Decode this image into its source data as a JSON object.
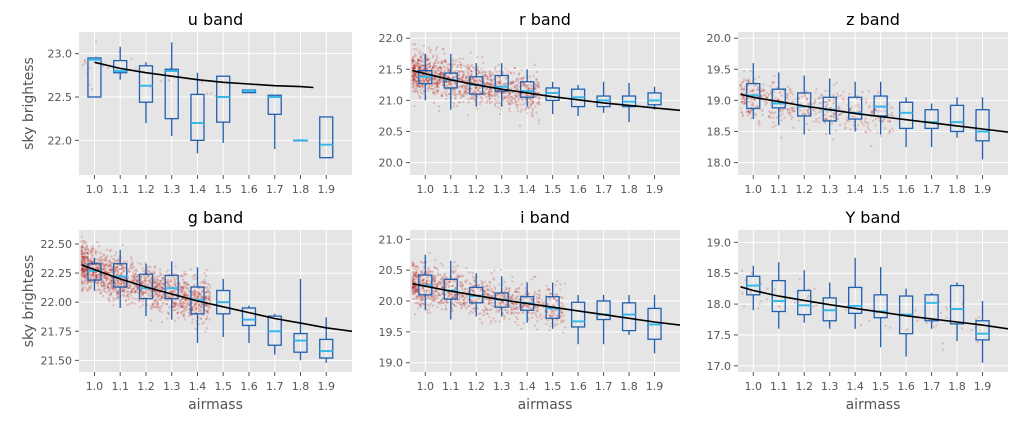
{
  "chart_data": [
    {
      "type": "box",
      "title": "u band",
      "xlabel": "",
      "ylabel": "sky brightess",
      "categories": [
        "1.0",
        "1.1",
        "1.2",
        "1.3",
        "1.4",
        "1.5",
        "1.6",
        "1.7",
        "1.8",
        "1.9"
      ],
      "ylim": [
        21.6,
        23.25
      ],
      "yticks": [
        "22.0",
        "22.5",
        "23.0"
      ],
      "boxes": [
        {
          "x": 1.0,
          "whislo": 22.5,
          "q1": 22.5,
          "med": 22.93,
          "q3": 22.95,
          "whishi": 22.95
        },
        {
          "x": 1.1,
          "whislo": 22.7,
          "q1": 22.78,
          "med": 22.8,
          "q3": 22.92,
          "whishi": 23.08
        },
        {
          "x": 1.2,
          "whislo": 22.2,
          "q1": 22.44,
          "med": 22.63,
          "q3": 22.86,
          "whishi": 22.9
        },
        {
          "x": 1.3,
          "whislo": 22.05,
          "q1": 22.25,
          "med": 22.8,
          "q3": 22.82,
          "whishi": 23.13
        },
        {
          "x": 1.4,
          "whislo": 21.85,
          "q1": 22.0,
          "med": 22.2,
          "q3": 22.53,
          "whishi": 22.78
        },
        {
          "x": 1.5,
          "whislo": 21.97,
          "q1": 22.21,
          "med": 22.5,
          "q3": 22.74,
          "whishi": 22.74
        },
        {
          "x": 1.6,
          "whislo": 22.55,
          "q1": 22.55,
          "med": 22.57,
          "q3": 22.58,
          "whishi": 22.58
        },
        {
          "x": 1.7,
          "whislo": 21.9,
          "q1": 22.3,
          "med": 22.5,
          "q3": 22.52,
          "whishi": 22.52
        },
        {
          "x": 1.8,
          "whislo": 22.0,
          "q1": 22.0,
          "med": 22.0,
          "q3": 22.0,
          "whishi": 22.0
        },
        {
          "x": 1.9,
          "whislo": 21.8,
          "q1": 21.8,
          "med": 21.95,
          "q3": 22.27,
          "whishi": 22.27
        }
      ],
      "fit": [
        [
          1.0,
          22.9
        ],
        [
          1.1,
          22.83
        ],
        [
          1.2,
          22.78
        ],
        [
          1.3,
          22.74
        ],
        [
          1.4,
          22.7
        ],
        [
          1.5,
          22.67
        ],
        [
          1.6,
          22.65
        ],
        [
          1.7,
          22.63
        ],
        [
          1.8,
          22.62
        ],
        [
          1.85,
          22.61
        ]
      ],
      "scatter": {
        "density": 25,
        "x_max": 1.55
      }
    },
    {
      "type": "box",
      "title": "r band",
      "xlabel": "",
      "ylabel": "",
      "categories": [
        "1.0",
        "1.1",
        "1.2",
        "1.3",
        "1.4",
        "1.5",
        "1.6",
        "1.7",
        "1.8",
        "1.9"
      ],
      "ylim": [
        19.8,
        22.1
      ],
      "yticks": [
        "20.0",
        "20.5",
        "21.0",
        "21.5",
        "22.0"
      ],
      "boxes": [
        {
          "x": 1.0,
          "whislo": 21.0,
          "q1": 21.27,
          "med": 21.38,
          "q3": 21.48,
          "whishi": 21.75
        },
        {
          "x": 1.1,
          "whislo": 20.85,
          "q1": 21.2,
          "med": 21.33,
          "q3": 21.44,
          "whishi": 21.75
        },
        {
          "x": 1.2,
          "whislo": 20.9,
          "q1": 21.1,
          "med": 21.25,
          "q3": 21.38,
          "whishi": 21.6
        },
        {
          "x": 1.3,
          "whislo": 20.9,
          "q1": 21.15,
          "med": 21.22,
          "q3": 21.4,
          "whishi": 21.6
        },
        {
          "x": 1.4,
          "whislo": 20.9,
          "q1": 21.05,
          "med": 21.15,
          "q3": 21.3,
          "whishi": 21.5
        },
        {
          "x": 1.5,
          "whislo": 20.78,
          "q1": 21.0,
          "med": 21.12,
          "q3": 21.2,
          "whishi": 21.3
        },
        {
          "x": 1.6,
          "whislo": 20.75,
          "q1": 20.9,
          "med": 21.05,
          "q3": 21.18,
          "whishi": 21.25
        },
        {
          "x": 1.7,
          "whislo": 20.8,
          "q1": 20.9,
          "med": 21.0,
          "q3": 21.07,
          "whishi": 21.3
        },
        {
          "x": 1.8,
          "whislo": 20.65,
          "q1": 20.9,
          "med": 20.98,
          "q3": 21.07,
          "whishi": 21.28
        },
        {
          "x": 1.9,
          "whislo": 20.85,
          "q1": 20.93,
          "med": 21.0,
          "q3": 21.12,
          "whishi": 21.22
        }
      ],
      "fit": [
        [
          0.95,
          21.48
        ],
        [
          1.0,
          21.43
        ],
        [
          1.1,
          21.33
        ],
        [
          1.2,
          21.25
        ],
        [
          1.3,
          21.18
        ],
        [
          1.4,
          21.12
        ],
        [
          1.5,
          21.06
        ],
        [
          1.6,
          21.01
        ],
        [
          1.7,
          20.96
        ],
        [
          1.8,
          20.92
        ],
        [
          1.9,
          20.88
        ],
        [
          2.0,
          20.84
        ]
      ],
      "scatter": {
        "density": 1300,
        "x_max": 1.45
      }
    },
    {
      "type": "box",
      "title": "z band",
      "xlabel": "",
      "ylabel": "",
      "categories": [
        "1.0",
        "1.1",
        "1.2",
        "1.3",
        "1.4",
        "1.5",
        "1.6",
        "1.7",
        "1.8",
        "1.9"
      ],
      "ylim": [
        17.8,
        20.1
      ],
      "yticks": [
        "18.0",
        "18.5",
        "19.0",
        "19.5",
        "20.0"
      ],
      "boxes": [
        {
          "x": 1.0,
          "whislo": 18.7,
          "q1": 18.87,
          "med": 19.08,
          "q3": 19.27,
          "whishi": 19.6
        },
        {
          "x": 1.1,
          "whislo": 18.6,
          "q1": 18.88,
          "med": 18.95,
          "q3": 19.18,
          "whishi": 19.45
        },
        {
          "x": 1.2,
          "whislo": 18.45,
          "q1": 18.75,
          "med": 18.9,
          "q3": 19.12,
          "whishi": 19.4
        },
        {
          "x": 1.3,
          "whislo": 18.45,
          "q1": 18.67,
          "med": 18.85,
          "q3": 19.05,
          "whishi": 19.35
        },
        {
          "x": 1.4,
          "whislo": 18.5,
          "q1": 18.7,
          "med": 18.8,
          "q3": 19.05,
          "whishi": 19.3
        },
        {
          "x": 1.5,
          "whislo": 18.45,
          "q1": 18.75,
          "med": 18.9,
          "q3": 19.07,
          "whishi": 19.3
        },
        {
          "x": 1.6,
          "whislo": 18.25,
          "q1": 18.55,
          "med": 18.8,
          "q3": 18.97,
          "whishi": 19.05
        },
        {
          "x": 1.7,
          "whislo": 18.25,
          "q1": 18.55,
          "med": 18.65,
          "q3": 18.85,
          "whishi": 18.95
        },
        {
          "x": 1.8,
          "whislo": 18.4,
          "q1": 18.5,
          "med": 18.65,
          "q3": 18.92,
          "whishi": 19.05
        },
        {
          "x": 1.9,
          "whislo": 18.05,
          "q1": 18.35,
          "med": 18.5,
          "q3": 18.85,
          "whishi": 19.05
        }
      ],
      "fit": [
        [
          0.95,
          19.1
        ],
        [
          1.0,
          19.05
        ],
        [
          1.1,
          18.98
        ],
        [
          1.2,
          18.91
        ],
        [
          1.3,
          18.85
        ],
        [
          1.4,
          18.79
        ],
        [
          1.5,
          18.74
        ],
        [
          1.6,
          18.69
        ],
        [
          1.7,
          18.64
        ],
        [
          1.8,
          18.59
        ],
        [
          1.9,
          18.54
        ],
        [
          2.0,
          18.49
        ]
      ],
      "scatter": {
        "density": 500,
        "x_max": 1.55
      }
    },
    {
      "type": "box",
      "title": "g band",
      "xlabel": "airmass",
      "ylabel": "sky brightess",
      "categories": [
        "1.0",
        "1.1",
        "1.2",
        "1.3",
        "1.4",
        "1.5",
        "1.6",
        "1.7",
        "1.8",
        "1.9"
      ],
      "ylim": [
        21.4,
        22.62
      ],
      "yticks": [
        "21.50",
        "21.75",
        "22.00",
        "22.25",
        "22.50"
      ],
      "boxes": [
        {
          "x": 1.0,
          "whislo": 22.1,
          "q1": 22.19,
          "med": 22.27,
          "q3": 22.33,
          "whishi": 22.38
        },
        {
          "x": 1.1,
          "whislo": 21.95,
          "q1": 22.13,
          "med": 22.22,
          "q3": 22.33,
          "whishi": 22.45
        },
        {
          "x": 1.2,
          "whislo": 21.88,
          "q1": 22.03,
          "med": 22.12,
          "q3": 22.24,
          "whishi": 22.33
        },
        {
          "x": 1.3,
          "whislo": 21.85,
          "q1": 22.03,
          "med": 22.12,
          "q3": 22.23,
          "whishi": 22.35
        },
        {
          "x": 1.4,
          "whislo": 21.65,
          "q1": 21.9,
          "med": 22.02,
          "q3": 22.13,
          "whishi": 22.3
        },
        {
          "x": 1.5,
          "whislo": 21.7,
          "q1": 21.9,
          "med": 22.0,
          "q3": 22.1,
          "whishi": 22.2
        },
        {
          "x": 1.6,
          "whislo": 21.65,
          "q1": 21.8,
          "med": 21.85,
          "q3": 21.95,
          "whishi": 21.97
        },
        {
          "x": 1.7,
          "whislo": 21.55,
          "q1": 21.63,
          "med": 21.75,
          "q3": 21.88,
          "whishi": 21.9
        },
        {
          "x": 1.8,
          "whislo": 21.5,
          "q1": 21.57,
          "med": 21.67,
          "q3": 21.73,
          "whishi": 22.2
        },
        {
          "x": 1.9,
          "whislo": 21.48,
          "q1": 21.52,
          "med": 21.58,
          "q3": 21.68,
          "whishi": 21.87
        }
      ],
      "fit": [
        [
          0.95,
          22.32
        ],
        [
          1.0,
          22.28
        ],
        [
          1.1,
          22.2
        ],
        [
          1.2,
          22.13
        ],
        [
          1.3,
          22.07
        ],
        [
          1.4,
          22.01
        ],
        [
          1.5,
          21.96
        ],
        [
          1.6,
          21.91
        ],
        [
          1.7,
          21.86
        ],
        [
          1.8,
          21.82
        ],
        [
          1.9,
          21.78
        ],
        [
          2.0,
          21.75
        ]
      ],
      "scatter": {
        "density": 1600,
        "x_max": 1.45
      }
    },
    {
      "type": "box",
      "title": "i band",
      "xlabel": "airmass",
      "ylabel": "",
      "categories": [
        "1.0",
        "1.1",
        "1.2",
        "1.3",
        "1.4",
        "1.5",
        "1.6",
        "1.7",
        "1.8",
        "1.9"
      ],
      "ylim": [
        18.85,
        21.15
      ],
      "yticks": [
        "19.0",
        "19.5",
        "20.0",
        "20.5",
        "21.0"
      ],
      "boxes": [
        {
          "x": 1.0,
          "whislo": 19.85,
          "q1": 20.1,
          "med": 20.25,
          "q3": 20.42,
          "whishi": 20.75
        },
        {
          "x": 1.1,
          "whislo": 19.7,
          "q1": 20.03,
          "med": 20.17,
          "q3": 20.35,
          "whishi": 20.65
        },
        {
          "x": 1.2,
          "whislo": 19.75,
          "q1": 19.97,
          "med": 20.08,
          "q3": 20.22,
          "whishi": 20.45
        },
        {
          "x": 1.3,
          "whislo": 19.75,
          "q1": 19.9,
          "med": 20.02,
          "q3": 20.13,
          "whishi": 20.4
        },
        {
          "x": 1.4,
          "whislo": 19.65,
          "q1": 19.85,
          "med": 19.97,
          "q3": 20.07,
          "whishi": 20.3
        },
        {
          "x": 1.5,
          "whislo": 19.55,
          "q1": 19.72,
          "med": 19.88,
          "q3": 20.07,
          "whishi": 20.3
        },
        {
          "x": 1.6,
          "whislo": 19.3,
          "q1": 19.58,
          "med": 19.67,
          "q3": 19.98,
          "whishi": 20.1
        },
        {
          "x": 1.7,
          "whislo": 19.3,
          "q1": 19.7,
          "med": 19.78,
          "q3": 20.0,
          "whishi": 20.1
        },
        {
          "x": 1.8,
          "whislo": 19.45,
          "q1": 19.52,
          "med": 19.78,
          "q3": 19.97,
          "whishi": 20.1
        },
        {
          "x": 1.9,
          "whislo": 19.15,
          "q1": 19.38,
          "med": 19.62,
          "q3": 19.88,
          "whishi": 20.1
        }
      ],
      "fit": [
        [
          0.95,
          20.28
        ],
        [
          1.0,
          20.24
        ],
        [
          1.1,
          20.16
        ],
        [
          1.2,
          20.09
        ],
        [
          1.3,
          20.02
        ],
        [
          1.4,
          19.96
        ],
        [
          1.5,
          19.9
        ],
        [
          1.6,
          19.84
        ],
        [
          1.7,
          19.78
        ],
        [
          1.8,
          19.72
        ],
        [
          1.9,
          19.66
        ],
        [
          2.0,
          19.61
        ]
      ],
      "scatter": {
        "density": 1100,
        "x_max": 1.55
      }
    },
    {
      "type": "box",
      "title": "Y band",
      "xlabel": "airmass",
      "ylabel": "",
      "categories": [
        "1.0",
        "1.1",
        "1.2",
        "1.3",
        "1.4",
        "1.5",
        "1.6",
        "1.7",
        "1.8",
        "1.9"
      ],
      "ylim": [
        16.9,
        19.2
      ],
      "yticks": [
        "17.0",
        "17.5",
        "18.0",
        "18.5",
        "19.0"
      ],
      "boxes": [
        {
          "x": 1.0,
          "whislo": 17.9,
          "q1": 18.15,
          "med": 18.3,
          "q3": 18.45,
          "whishi": 18.62
        },
        {
          "x": 1.1,
          "whislo": 17.6,
          "q1": 17.88,
          "med": 18.05,
          "q3": 18.38,
          "whishi": 18.68
        },
        {
          "x": 1.2,
          "whislo": 17.7,
          "q1": 17.83,
          "med": 17.98,
          "q3": 18.22,
          "whishi": 18.55
        },
        {
          "x": 1.3,
          "whislo": 17.6,
          "q1": 17.73,
          "med": 17.9,
          "q3": 18.1,
          "whishi": 18.35
        },
        {
          "x": 1.4,
          "whislo": 17.6,
          "q1": 17.85,
          "med": 17.97,
          "q3": 18.27,
          "whishi": 18.75
        },
        {
          "x": 1.5,
          "whislo": 17.3,
          "q1": 17.78,
          "med": 17.88,
          "q3": 18.15,
          "whishi": 18.6
        },
        {
          "x": 1.6,
          "whislo": 17.15,
          "q1": 17.52,
          "med": 17.83,
          "q3": 18.13,
          "whishi": 18.25
        },
        {
          "x": 1.7,
          "whislo": 17.6,
          "q1": 17.73,
          "med": 18.02,
          "q3": 18.15,
          "whishi": 18.18
        },
        {
          "x": 1.8,
          "whislo": 17.4,
          "q1": 17.68,
          "med": 17.92,
          "q3": 18.3,
          "whishi": 18.35
        },
        {
          "x": 1.9,
          "whislo": 17.05,
          "q1": 17.42,
          "med": 17.52,
          "q3": 17.73,
          "whishi": 18.05
        }
      ],
      "fit": [
        [
          0.95,
          18.28
        ],
        [
          1.0,
          18.22
        ],
        [
          1.1,
          18.13
        ],
        [
          1.2,
          18.06
        ],
        [
          1.3,
          17.99
        ],
        [
          1.4,
          17.93
        ],
        [
          1.5,
          17.87
        ],
        [
          1.6,
          17.81
        ],
        [
          1.7,
          17.76
        ],
        [
          1.8,
          17.71
        ],
        [
          1.9,
          17.66
        ],
        [
          2.0,
          17.6
        ]
      ],
      "scatter": {
        "density": 60,
        "x_max": 1.9
      }
    }
  ],
  "style": {
    "panel_bg": "#e5e5e5",
    "grid_color": "#ffffff",
    "box_color": "#2060b0",
    "median_color": "#38b8e8",
    "scatter_color": "#b22222",
    "fit_color": "#000000"
  }
}
